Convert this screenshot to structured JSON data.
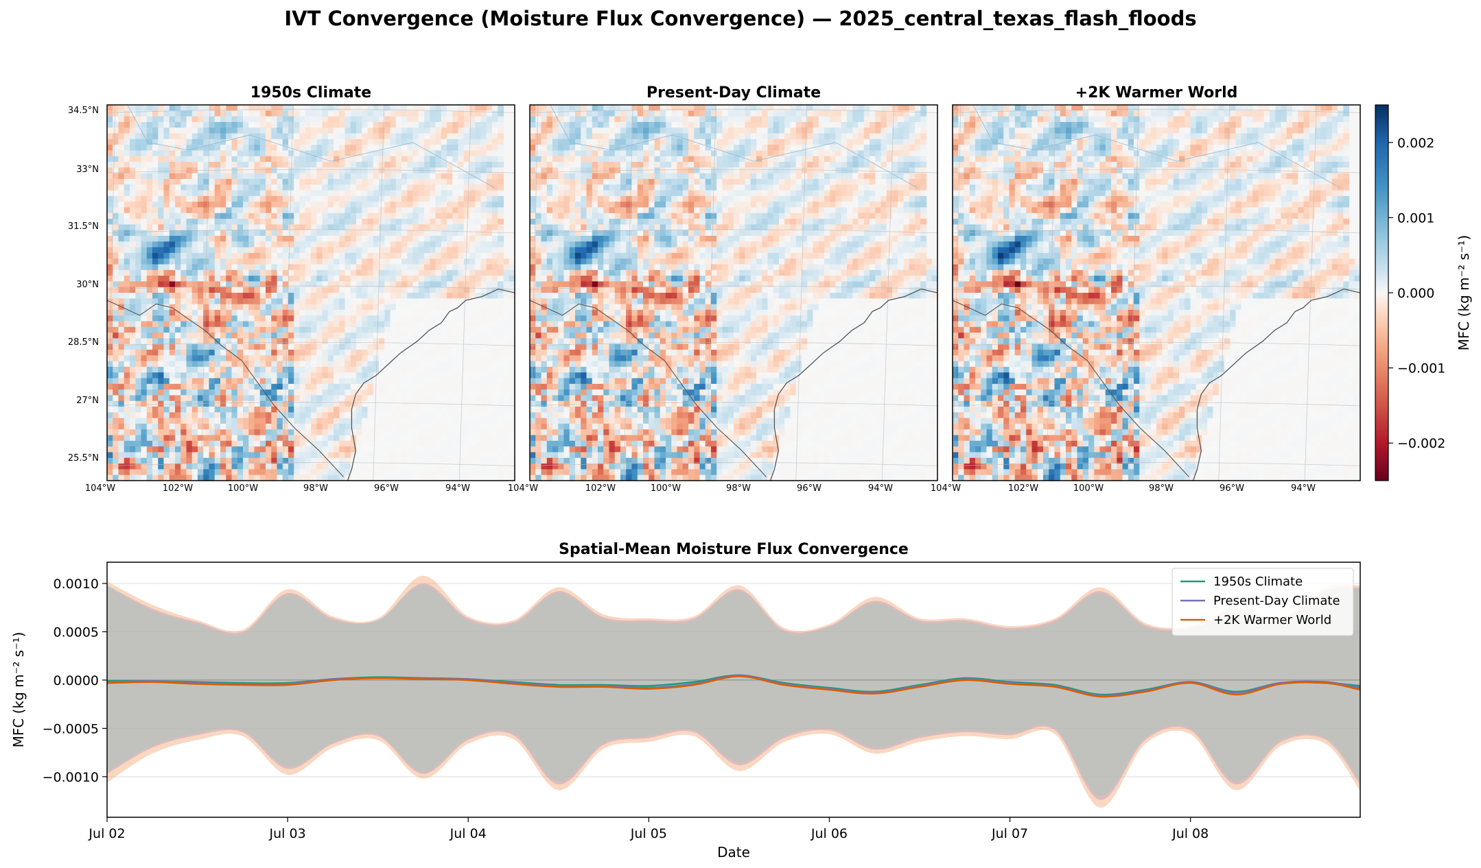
{
  "figure": {
    "title": "IVT Convergence (Moisture Flux Convergence) — 2025_central_texas_flash_floods"
  },
  "maps": {
    "panels": [
      {
        "title": "1950s Climate"
      },
      {
        "title": "Present-Day Climate"
      },
      {
        "title": "+2K Warmer World"
      }
    ],
    "lat_labels": [
      "34.5°N",
      "33°N",
      "31.5°N",
      "30°N",
      "28.5°N",
      "27°N",
      "25.5°N"
    ],
    "lon_labels": [
      "104°W",
      "102°W",
      "100°W",
      "98°W",
      "96°W",
      "94°W"
    ],
    "colorbar": {
      "label": "MFC (kg m⁻² s⁻¹)",
      "ticks": [
        "0.002",
        "0.001",
        "0.000",
        "−0.001",
        "−0.002"
      ],
      "tick_values": [
        0.002,
        0.001,
        0.0,
        -0.001,
        -0.002
      ],
      "range": [
        -0.0025,
        0.0025
      ],
      "colormap": "RdBu",
      "colors": {
        "low": "#67001f",
        "mid": "#f7f7f7",
        "high": "#053061"
      }
    }
  },
  "chart_data": {
    "type": "line",
    "title": "Spatial-Mean Moisture Flux Convergence",
    "xlabel": "Date",
    "ylabel": "MFC (kg m⁻² s⁻¹)",
    "x_ticks": [
      "Jul 02",
      "Jul 03",
      "Jul 04",
      "Jul 05",
      "Jul 06",
      "Jul 07",
      "Jul 08"
    ],
    "x_range_days": [
      0,
      6.94
    ],
    "ylim": [
      -0.00142,
      0.00122
    ],
    "y_ticks": [
      "0.0010",
      "0.0005",
      "0.0000",
      "−0.0005",
      "−0.0010"
    ],
    "y_tick_values": [
      0.001,
      0.0005,
      0.0,
      -0.0005,
      -0.001
    ],
    "grid": "horizontal",
    "legend_position": "top-right",
    "shaded_band": "mean ± spread",
    "x_days": [
      0,
      0.25,
      0.5,
      0.75,
      1,
      1.25,
      1.5,
      1.75,
      2,
      2.25,
      2.5,
      2.75,
      3,
      3.25,
      3.5,
      3.75,
      4,
      4.25,
      4.5,
      4.75,
      5,
      5.25,
      5.5,
      5.75,
      6,
      6.25,
      6.5,
      6.75,
      6.94
    ],
    "series": [
      {
        "name": "1950s Climate",
        "color": "#1b9e77",
        "values": [
          -1e-05,
          -1e-05,
          -2e-05,
          -3e-05,
          -3e-05,
          1e-05,
          3e-05,
          2e-05,
          1e-05,
          -2e-05,
          -5e-05,
          -5e-05,
          -6e-05,
          -2e-05,
          5e-05,
          -3e-05,
          -8e-05,
          -0.00012,
          -5e-05,
          2e-05,
          -2e-05,
          -5e-05,
          -0.00015,
          -0.0001,
          -2e-05,
          -0.00012,
          -3e-05,
          -3e-05,
          -6e-05
        ],
        "band_upper": [
          0.00098,
          0.00072,
          0.00058,
          0.00048,
          0.00088,
          0.00062,
          0.00062,
          0.00098,
          0.00062,
          0.00058,
          0.0009,
          0.00063,
          0.0006,
          0.00062,
          0.00092,
          0.0005,
          0.00055,
          0.0008,
          0.0006,
          0.0006,
          0.00052,
          0.0006,
          0.0009,
          0.00055,
          0.00052,
          0.00068,
          0.0006,
          0.0009,
          0.00095
        ],
        "band_lower": [
          -0.00095,
          -0.00068,
          -0.00055,
          -0.00052,
          -0.0009,
          -0.00065,
          -0.00056,
          -0.00095,
          -0.0006,
          -0.00055,
          -0.00105,
          -0.00065,
          -0.00058,
          -0.00052,
          -0.00085,
          -0.00058,
          -0.0005,
          -0.0007,
          -0.00058,
          -0.00052,
          -0.00055,
          -0.0005,
          -0.0012,
          -0.0006,
          -0.0005,
          -0.00105,
          -0.00062,
          -0.0006,
          -0.00105
        ]
      },
      {
        "name": "Present-Day Climate",
        "color": "#7570b3",
        "values": [
          -2e-05,
          -1e-05,
          -3e-05,
          -4e-05,
          -4e-05,
          1e-05,
          2e-05,
          2e-05,
          1e-05,
          -3e-05,
          -6e-05,
          -6e-05,
          -8e-05,
          -4e-05,
          5e-05,
          -4e-05,
          -9e-05,
          -0.00013,
          -6e-05,
          1e-05,
          -3e-05,
          -6e-05,
          -0.00016,
          -0.00011,
          -2e-05,
          -0.00013,
          -3e-05,
          -2e-05,
          -8e-05
        ],
        "band_upper": [
          0.00098,
          0.00074,
          0.0006,
          0.0005,
          0.0009,
          0.00064,
          0.00062,
          0.001,
          0.00064,
          0.0006,
          0.00092,
          0.00065,
          0.00062,
          0.00064,
          0.00094,
          0.00052,
          0.00056,
          0.00082,
          0.00062,
          0.00062,
          0.00054,
          0.00062,
          0.00092,
          0.00057,
          0.00054,
          0.0007,
          0.00062,
          0.00092,
          0.00096
        ],
        "band_lower": [
          -0.00097,
          -0.0007,
          -0.00057,
          -0.00054,
          -0.00092,
          -0.00066,
          -0.00058,
          -0.00097,
          -0.00062,
          -0.00057,
          -0.00108,
          -0.00067,
          -0.0006,
          -0.00054,
          -0.00088,
          -0.0006,
          -0.00052,
          -0.00072,
          -0.0006,
          -0.00054,
          -0.00057,
          -0.00052,
          -0.00124,
          -0.00062,
          -0.00052,
          -0.00108,
          -0.00064,
          -0.00062,
          -0.00108
        ]
      },
      {
        "name": "+2K Warmer World",
        "color": "#d95f02",
        "values": [
          -3e-05,
          -2e-05,
          -4e-05,
          -5e-05,
          -5e-05,
          0.0,
          2e-05,
          1e-05,
          0.0,
          -4e-05,
          -7e-05,
          -7e-05,
          -9e-05,
          -5e-05,
          4e-05,
          -5e-05,
          -0.0001,
          -0.00014,
          -7e-05,
          0.0,
          -4e-05,
          -7e-05,
          -0.00017,
          -0.00012,
          -3e-05,
          -0.00015,
          -4e-05,
          -3e-05,
          -0.0001
        ],
        "band_upper": [
          0.00102,
          0.00078,
          0.00062,
          0.00052,
          0.00094,
          0.00066,
          0.00064,
          0.00108,
          0.00066,
          0.00062,
          0.00096,
          0.00068,
          0.00064,
          0.00066,
          0.00098,
          0.00054,
          0.00058,
          0.00086,
          0.00064,
          0.00064,
          0.00056,
          0.00064,
          0.00096,
          0.00059,
          0.00056,
          0.00074,
          0.00064,
          0.00096,
          0.00098
        ],
        "band_lower": [
          -0.00106,
          -0.00076,
          -0.00062,
          -0.00058,
          -0.00098,
          -0.0007,
          -0.00062,
          -0.00102,
          -0.00066,
          -0.00061,
          -0.00114,
          -0.00071,
          -0.00064,
          -0.00058,
          -0.00094,
          -0.00064,
          -0.00056,
          -0.00076,
          -0.00064,
          -0.00058,
          -0.00061,
          -0.00056,
          -0.00132,
          -0.00066,
          -0.00056,
          -0.00114,
          -0.00068,
          -0.00066,
          -0.00115
        ]
      }
    ]
  }
}
